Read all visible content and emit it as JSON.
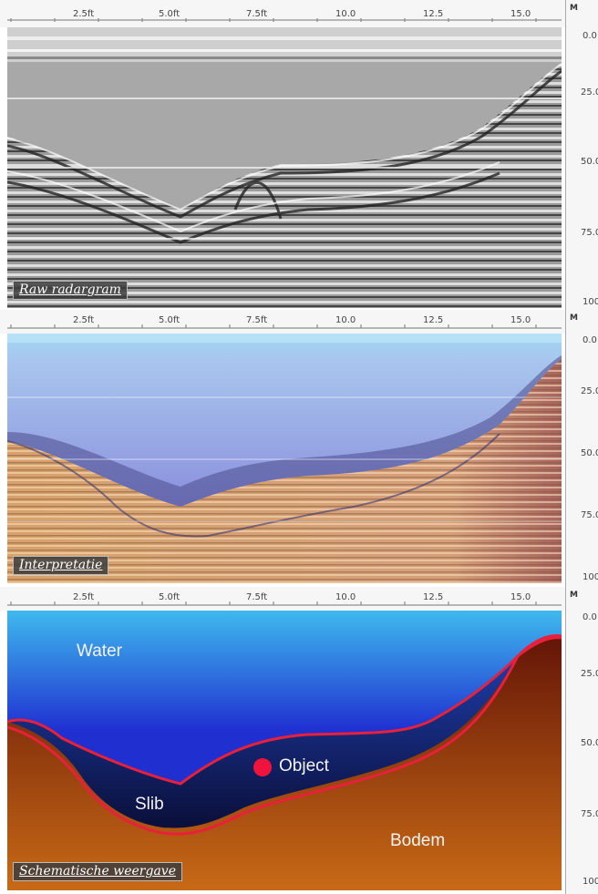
{
  "x_axis_ticks": [
    "2.5ft",
    "5.0ft",
    "7.5ft",
    "10.0",
    "12.5",
    "15.0"
  ],
  "y_axis_unit": "M",
  "y_axis_ticks": [
    "0.0",
    "25.0",
    "50.0",
    "75.0",
    "100"
  ],
  "panels": [
    {
      "id": "raw",
      "caption": "Raw radargram"
    },
    {
      "id": "interpretation",
      "caption": "Interpretatie"
    },
    {
      "id": "schematic",
      "caption": "Schematische weergave",
      "labels": {
        "water": "Water",
        "slib": "Slib",
        "object": "Object",
        "bodem": "Bodem"
      }
    }
  ],
  "colors": {
    "water_top": "#3fb9ee",
    "water_bottom": "#1f2fd0",
    "slib": "#121a60",
    "bodem_top": "#5a0c06",
    "bodem_bottom": "#c86a16",
    "outline": "#e8203a",
    "object": "#f0143c"
  }
}
